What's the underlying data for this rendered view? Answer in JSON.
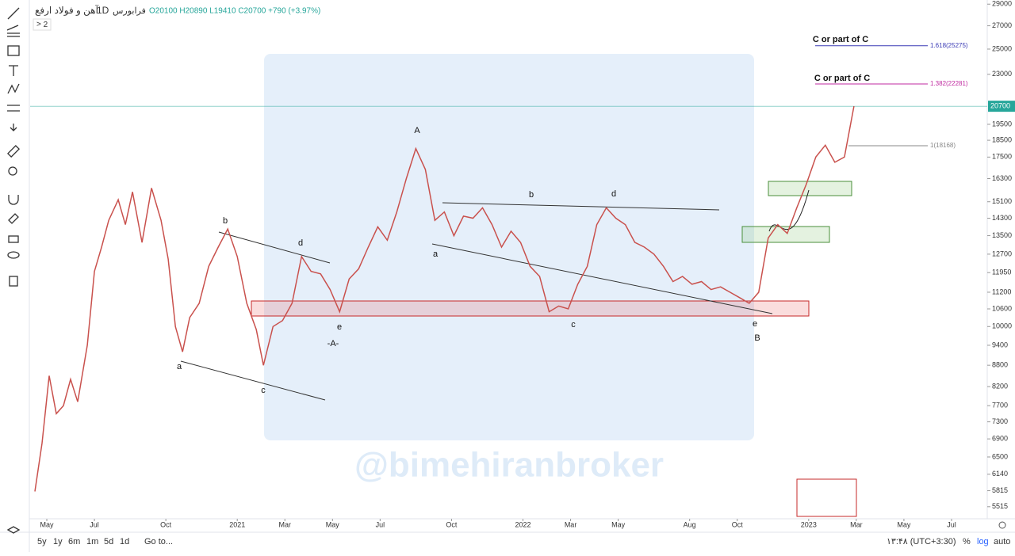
{
  "header": {
    "symbol": "آهن و فولاد ارفع",
    "interval": "1D",
    "exchange": "فرابورس",
    "counter": "2",
    "ohlc": "O20100 H20890 L19410 C20700 +790 (+3.97%)"
  },
  "watermark": "@bimehiranbroker",
  "toolbar": {
    "ranges": [
      "5y",
      "1y",
      "6m",
      "1m",
      "5d",
      "1d"
    ],
    "goto": "Go to...",
    "clock": "۱۳:۴۸ (UTC+3:30)",
    "percent": "%",
    "log": "log",
    "auto": "auto"
  },
  "chart_data": {
    "type": "line",
    "log_scale": true,
    "x": [
      -0.5,
      -0.2,
      0.1,
      0.4,
      0.7,
      1.0,
      1.3,
      1.7,
      2.0,
      2.3,
      2.6,
      3.0,
      3.3,
      3.6,
      4.0,
      4.4,
      4.8,
      5.1,
      5.4,
      5.7,
      6.0,
      6.4,
      6.8,
      7.2,
      7.6,
      8.0,
      8.4,
      8.8,
      9.1,
      9.5,
      9.9,
      10.3,
      10.7,
      11.1,
      11.5,
      11.9,
      12.3,
      12.7,
      13.1,
      13.5,
      13.9,
      14.3,
      14.7,
      15.1,
      15.5,
      15.9,
      16.3,
      16.7,
      17.1,
      17.5,
      17.9,
      18.3,
      18.7,
      19.1,
      19.5,
      19.9,
      20.3,
      20.7,
      21.1,
      21.5,
      21.9,
      22.3,
      22.7,
      23.1,
      23.5,
      23.9,
      24.3,
      24.7,
      25.1,
      25.5,
      25.9,
      26.3,
      26.7,
      27.1,
      27.5,
      27.9,
      28.3,
      28.7,
      29.1,
      29.5,
      29.9,
      30.3,
      30.7,
      31.1,
      31.5,
      31.9,
      32.3,
      32.7,
      33.1,
      33.5,
      33.9
    ],
    "series": [
      {
        "name": "آهن و فولاد ارفع",
        "color": "#c9514d",
        "values": [
          5800,
          6800,
          8500,
          7500,
          7700,
          8400,
          7800,
          9400,
          12000,
          13000,
          14200,
          15200,
          14000,
          15600,
          13200,
          15800,
          14200,
          12500,
          10000,
          9200,
          10300,
          10800,
          12200,
          13000,
          13800,
          12600,
          10800,
          9900,
          8800,
          10000,
          10200,
          10800,
          12600,
          12000,
          11900,
          11300,
          10500,
          11700,
          12100,
          13000,
          13900,
          13300,
          14600,
          16300,
          18000,
          16800,
          14200,
          14600,
          13500,
          14400,
          14300,
          14800,
          14000,
          13000,
          13700,
          13200,
          12200,
          11800,
          10500,
          10700,
          10600,
          11500,
          12200,
          14000,
          14800,
          14300,
          14000,
          13200,
          13000,
          12700,
          12200,
          11600,
          11800,
          11500,
          11600,
          11300,
          11400,
          11200,
          11000,
          10800,
          11200,
          13400,
          14000,
          13600,
          14800,
          16000,
          17500,
          18200,
          17200,
          17500,
          20700
        ]
      }
    ],
    "xlim": [
      -0.7,
      39.5
    ],
    "xticks": [
      {
        "value": 0,
        "label": "May"
      },
      {
        "value": 2,
        "label": "Jul"
      },
      {
        "value": 5,
        "label": "Oct"
      },
      {
        "value": 8,
        "label": "2021"
      },
      {
        "value": 10,
        "label": "Mar"
      },
      {
        "value": 12,
        "label": "May"
      },
      {
        "value": 14,
        "label": "Jul"
      },
      {
        "value": 17,
        "label": "Oct"
      },
      {
        "value": 20,
        "label": "2022"
      },
      {
        "value": 22,
        "label": "Mar"
      },
      {
        "value": 24,
        "label": "May"
      },
      {
        "value": 27,
        "label": "Aug"
      },
      {
        "value": 29,
        "label": "Oct"
      },
      {
        "value": 32,
        "label": "2023"
      },
      {
        "value": 34,
        "label": "Mar"
      },
      {
        "value": 36,
        "label": "May"
      },
      {
        "value": 38,
        "label": "Jul"
      }
    ],
    "ylim": [
      5300,
      29400
    ],
    "yticks": [
      29000,
      27000,
      25000,
      23000,
      19500,
      18500,
      17500,
      16300,
      15100,
      14300,
      13500,
      12700,
      11950,
      11200,
      10600,
      10000,
      9400,
      8800,
      8200,
      7700,
      7300,
      6900,
      6500,
      6140,
      5815,
      5515
    ],
    "last_price": 20700,
    "fib_levels": [
      {
        "value": 25275,
        "label": "1.618(25275)"
      },
      {
        "value": 22281,
        "label": "1.382(22281)"
      },
      {
        "value": 18168,
        "label": "1(18168)"
      }
    ],
    "annotations": [
      "a",
      "b",
      "c",
      "d",
      "e",
      "-A-",
      "A",
      "a",
      "b",
      "d",
      "c",
      "e",
      "B",
      "C or part of C",
      "C or part of C"
    ]
  }
}
